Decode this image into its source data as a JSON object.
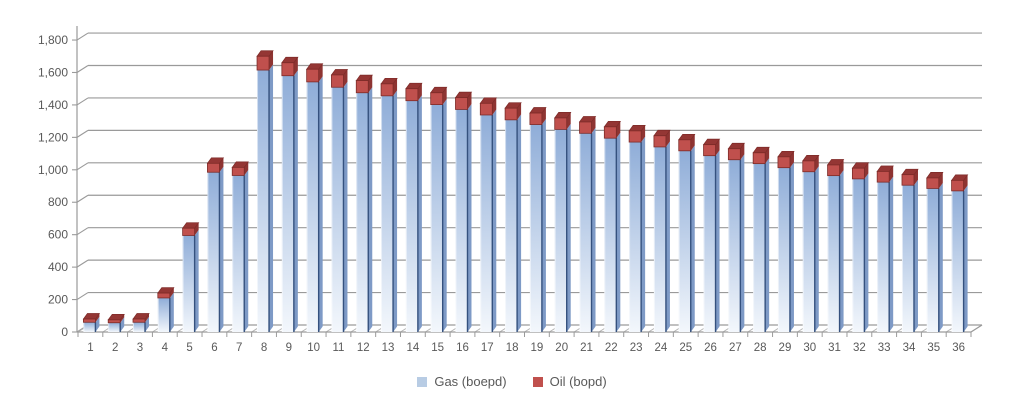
{
  "chart_data": {
    "type": "bar",
    "stacked": true,
    "style": "3d",
    "title": "",
    "xlabel": "",
    "ylabel": "",
    "categories": [
      "1",
      "2",
      "3",
      "4",
      "5",
      "6",
      "7",
      "8",
      "9",
      "10",
      "11",
      "12",
      "13",
      "14",
      "15",
      "16",
      "17",
      "18",
      "19",
      "20",
      "21",
      "22",
      "23",
      "24",
      "25",
      "26",
      "27",
      "28",
      "29",
      "30",
      "31",
      "32",
      "33",
      "34",
      "35",
      "36"
    ],
    "series": [
      {
        "name": "Gas (boepd)",
        "color": "#95b3d7",
        "gradient_top": "#8fadd8",
        "gradient_bottom": "#f3f7fc",
        "side_color": "#7e9ac6",
        "edge_color": "#35517e",
        "legend_color": "#b8cce4",
        "values": [
          60,
          57,
          60,
          210,
          595,
          985,
          965,
          1615,
          1580,
          1542,
          1509,
          1475,
          1456,
          1426,
          1402,
          1372,
          1338,
          1308,
          1279,
          1249,
          1225,
          1195,
          1171,
          1141,
          1117,
          1087,
          1062,
          1038,
          1013,
          988,
          964,
          944,
          924,
          905,
          885,
          870
        ]
      },
      {
        "name": "Oil (bopd)",
        "color": "#c0504d",
        "top_color": "#943634",
        "side_color": "#8e3432",
        "edge_color": "#7d2b28",
        "legend_color": "#c0504d",
        "values": [
          20,
          18,
          20,
          30,
          45,
          55,
          50,
          85,
          80,
          78,
          76,
          75,
          74,
          74,
          73,
          73,
          72,
          72,
          71,
          71,
          70,
          70,
          69,
          69,
          68,
          68,
          68,
          67,
          67,
          67,
          66,
          66,
          66,
          65,
          65,
          65
        ]
      }
    ],
    "ylim": [
      0,
      1800
    ],
    "ytick_step": 200,
    "ytick_labels": [
      "0",
      "200",
      "400",
      "600",
      "800",
      "1,000",
      "1,200",
      "1,400",
      "1,600",
      "1,800"
    ],
    "grid": true,
    "gridline_color": "#9a9a9a",
    "axis_text_color": "#595959",
    "legend_position": "bottom"
  }
}
